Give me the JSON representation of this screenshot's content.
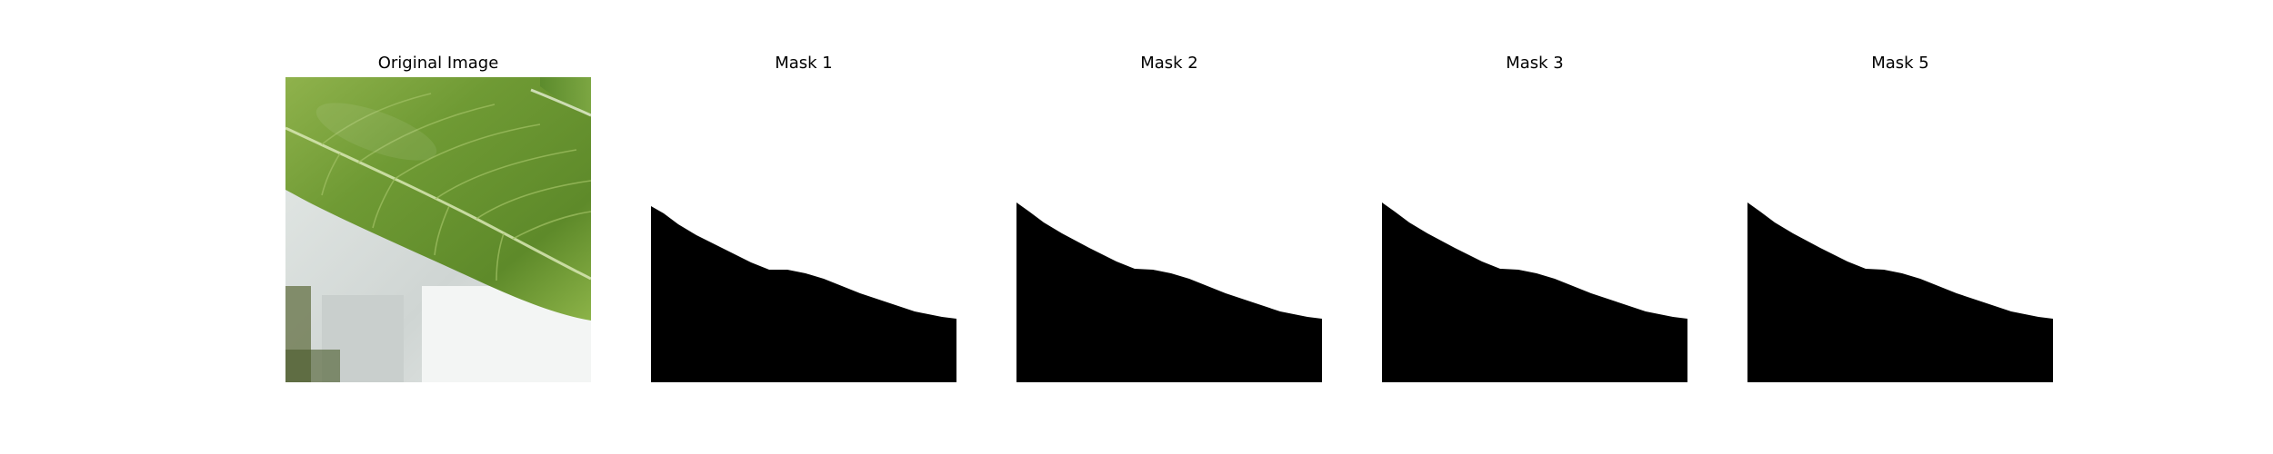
{
  "figure": {
    "panels": [
      {
        "title": "Original Image"
      },
      {
        "title": "Mask 1"
      },
      {
        "title": "Mask 2"
      },
      {
        "title": "Mask 3"
      },
      {
        "title": "Mask 5"
      }
    ]
  },
  "colors": {
    "background": "#ffffff",
    "mask_foreground": "#000000",
    "leaf_green": "#6f9a34",
    "leaf_light": "#a8c56a",
    "backdrop_gray": "#d4d9d7"
  }
}
